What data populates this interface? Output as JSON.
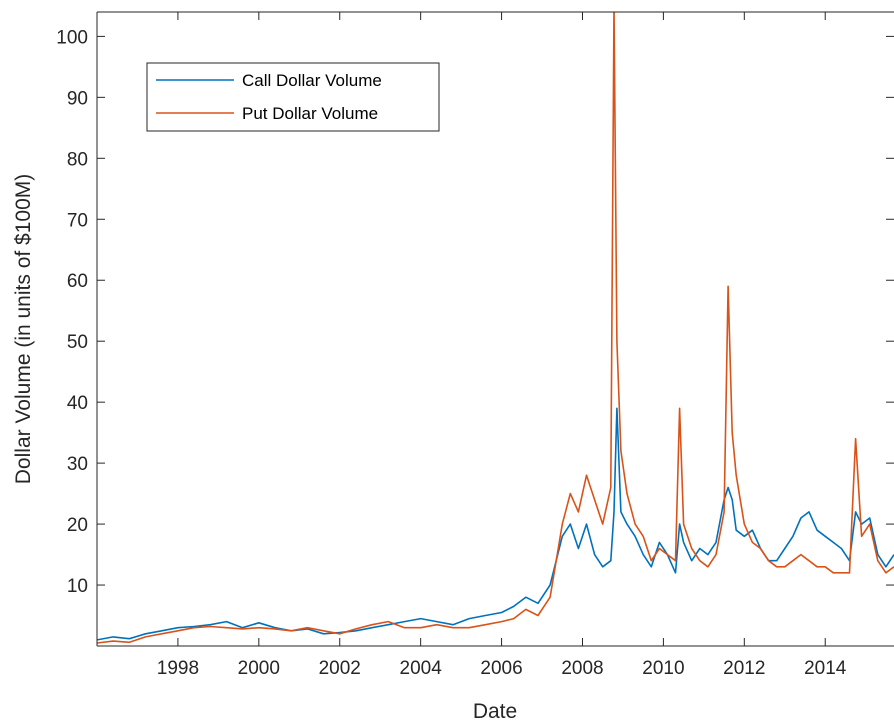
{
  "chart_data": {
    "type": "line",
    "xlabel": "Date",
    "ylabel": "Dollar Volume (in units of $100M)",
    "xlim": [
      1996.0,
      2015.7
    ],
    "ylim": [
      0,
      104
    ],
    "x_ticks": [
      1998,
      2000,
      2002,
      2004,
      2006,
      2008,
      2010,
      2012,
      2014
    ],
    "x_tick_labels": [
      "1998",
      "2000",
      "2002",
      "2004",
      "2006",
      "2008",
      "2010",
      "2012",
      "2014"
    ],
    "y_ticks": [
      10,
      20,
      30,
      40,
      50,
      60,
      70,
      80,
      90,
      100
    ],
    "y_tick_labels": [
      "10",
      "20",
      "30",
      "40",
      "50",
      "60",
      "70",
      "80",
      "90",
      "100"
    ],
    "grid": false,
    "legend_position": "top-left",
    "x": [
      1996.0,
      1996.4,
      1996.8,
      1997.2,
      1997.6,
      1998.0,
      1998.4,
      1998.8,
      1999.2,
      1999.6,
      2000.0,
      2000.4,
      2000.8,
      2001.2,
      2001.6,
      2002.0,
      2002.4,
      2002.8,
      2003.2,
      2003.6,
      2004.0,
      2004.4,
      2004.8,
      2005.2,
      2005.6,
      2006.0,
      2006.3,
      2006.6,
      2006.9,
      2007.2,
      2007.5,
      2007.7,
      2007.9,
      2008.1,
      2008.3,
      2008.5,
      2008.7,
      2008.78,
      2008.85,
      2008.95,
      2009.1,
      2009.3,
      2009.5,
      2009.7,
      2009.9,
      2010.1,
      2010.3,
      2010.4,
      2010.5,
      2010.7,
      2010.9,
      2011.1,
      2011.3,
      2011.5,
      2011.6,
      2011.7,
      2011.8,
      2012.0,
      2012.2,
      2012.4,
      2012.6,
      2012.8,
      2013.0,
      2013.2,
      2013.4,
      2013.6,
      2013.8,
      2014.0,
      2014.2,
      2014.4,
      2014.6,
      2014.75,
      2014.9,
      2015.1,
      2015.3,
      2015.5,
      2015.7
    ],
    "series": [
      {
        "name": "Call Dollar Volume",
        "color": "#0072BD",
        "values": [
          1.0,
          1.5,
          1.2,
          2.0,
          2.5,
          3.0,
          3.2,
          3.5,
          4.0,
          3.0,
          3.8,
          3.0,
          2.5,
          2.8,
          2.0,
          2.2,
          2.5,
          3.0,
          3.5,
          4.0,
          4.5,
          4.0,
          3.5,
          4.5,
          5.0,
          5.5,
          6.5,
          8.0,
          7.0,
          10.0,
          18.0,
          20.0,
          16.0,
          20.0,
          15.0,
          13.0,
          14.0,
          22.0,
          39.0,
          22.0,
          20.0,
          18.0,
          15.0,
          13.0,
          17.0,
          15.0,
          12.0,
          20.0,
          17.0,
          14.0,
          16.0,
          15.0,
          17.0,
          24.0,
          26.0,
          24.0,
          19.0,
          18.0,
          19.0,
          16.0,
          14.0,
          14.0,
          16.0,
          18.0,
          21.0,
          22.0,
          19.0,
          18.0,
          17.0,
          16.0,
          14.0,
          22.0,
          20.0,
          21.0,
          15.0,
          13.0,
          15.0
        ]
      },
      {
        "name": "Put Dollar Volume",
        "color": "#D95319",
        "values": [
          0.5,
          0.8,
          0.6,
          1.5,
          2.0,
          2.5,
          3.0,
          3.2,
          3.0,
          2.8,
          3.0,
          2.8,
          2.5,
          3.0,
          2.5,
          2.0,
          2.8,
          3.5,
          4.0,
          3.0,
          3.0,
          3.5,
          3.0,
          3.0,
          3.5,
          4.0,
          4.5,
          6.0,
          5.0,
          8.0,
          20.0,
          25.0,
          22.0,
          28.0,
          24.0,
          20.0,
          26.0,
          105.0,
          50.0,
          32.0,
          25.0,
          20.0,
          18.0,
          14.0,
          16.0,
          15.0,
          14.0,
          39.0,
          20.0,
          16.0,
          14.0,
          13.0,
          15.0,
          22.0,
          59.0,
          35.0,
          28.0,
          20.0,
          17.0,
          16.0,
          14.0,
          13.0,
          13.0,
          14.0,
          15.0,
          14.0,
          13.0,
          13.0,
          12.0,
          12.0,
          12.0,
          34.0,
          18.0,
          20.0,
          14.0,
          12.0,
          13.0
        ]
      }
    ]
  }
}
